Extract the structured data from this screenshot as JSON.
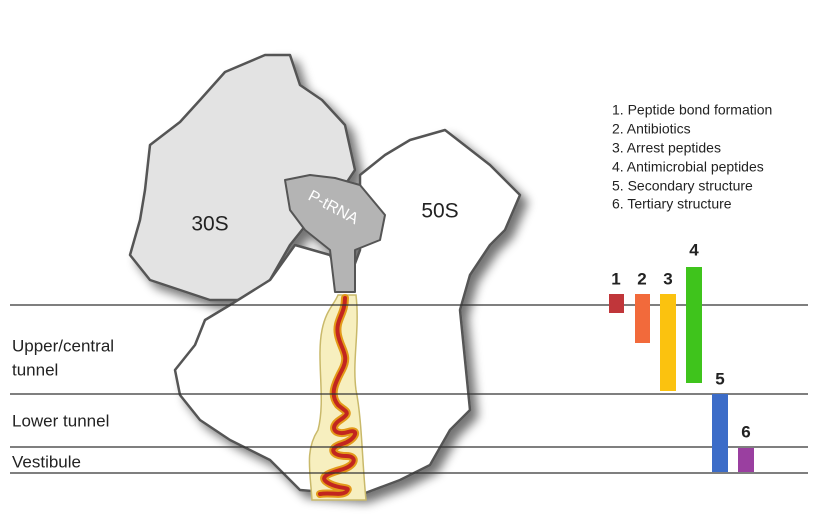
{
  "labels": {
    "small_subunit": "30S",
    "large_subunit": "50S",
    "trna": "P-tRNA"
  },
  "regions": [
    [
      "Upper/central",
      "tunnel"
    ],
    [
      "Lower tunnel"
    ],
    [
      "Vestibule"
    ]
  ],
  "legend": [
    "1. Peptide bond formation",
    "2. Antibiotics",
    "3. Arrest peptides",
    "4. Antimicrobial peptides",
    "5. Secondary structure",
    "6. Tertiary structure"
  ],
  "bars": [
    "1",
    "2",
    "3",
    "4",
    "5",
    "6"
  ]
}
